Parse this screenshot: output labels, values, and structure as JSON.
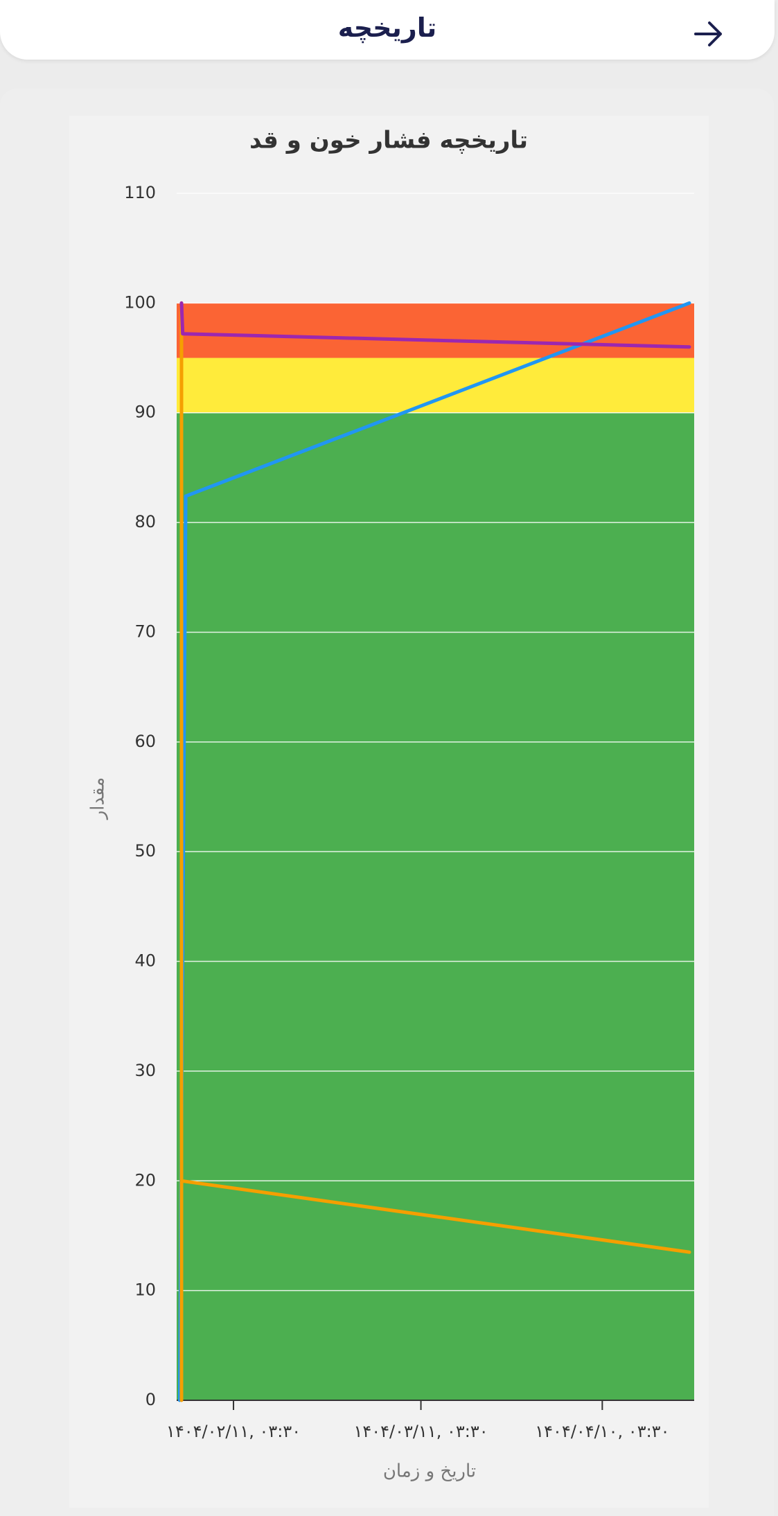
{
  "header": {
    "title": "تاریخچه"
  },
  "chart_data": {
    "type": "line",
    "title": "تاریخچه فشار خون و قد",
    "x_label": "تاریخ و زمان",
    "y_label": "مقدار",
    "xlim": [
      -9.4,
      76.2
    ],
    "xticks": [
      {
        "value": 0,
        "label": "۱۴۰۴/۰۲/۱۱, ۰۳:۳۰"
      },
      {
        "value": 31,
        "label": "۱۴۰۴/۰۳/۱۱, ۰۳:۳۰"
      },
      {
        "value": 61,
        "label": "۱۴۰۴/۰۴/۱۰, ۰۳:۳۰"
      }
    ],
    "ylim": [
      0,
      110
    ],
    "yticks": [
      0,
      10,
      20,
      30,
      40,
      50,
      60,
      70,
      80,
      90,
      100,
      110
    ],
    "grid": true,
    "bands": [
      {
        "from": 0,
        "to": 90,
        "color": "#4caf50"
      },
      {
        "from": 90,
        "to": 95,
        "color": "#ffeb3b"
      },
      {
        "from": 95,
        "to": 100,
        "color": "#fb6434"
      }
    ],
    "series": [
      {
        "color": "#2196f3",
        "x": [
          -8.9,
          -7.9,
          75.4
        ],
        "values": [
          0,
          82.4,
          100
        ]
      },
      {
        "color": "#f59f00",
        "x": [
          -8.6,
          -8.6,
          -8.6,
          75.4
        ],
        "values": [
          0,
          100,
          20,
          13.5
        ]
      },
      {
        "color": "#9c27b0",
        "x": [
          -8.6,
          -8.4,
          75.4
        ],
        "values": [
          100,
          97.2,
          96
        ]
      }
    ]
  }
}
